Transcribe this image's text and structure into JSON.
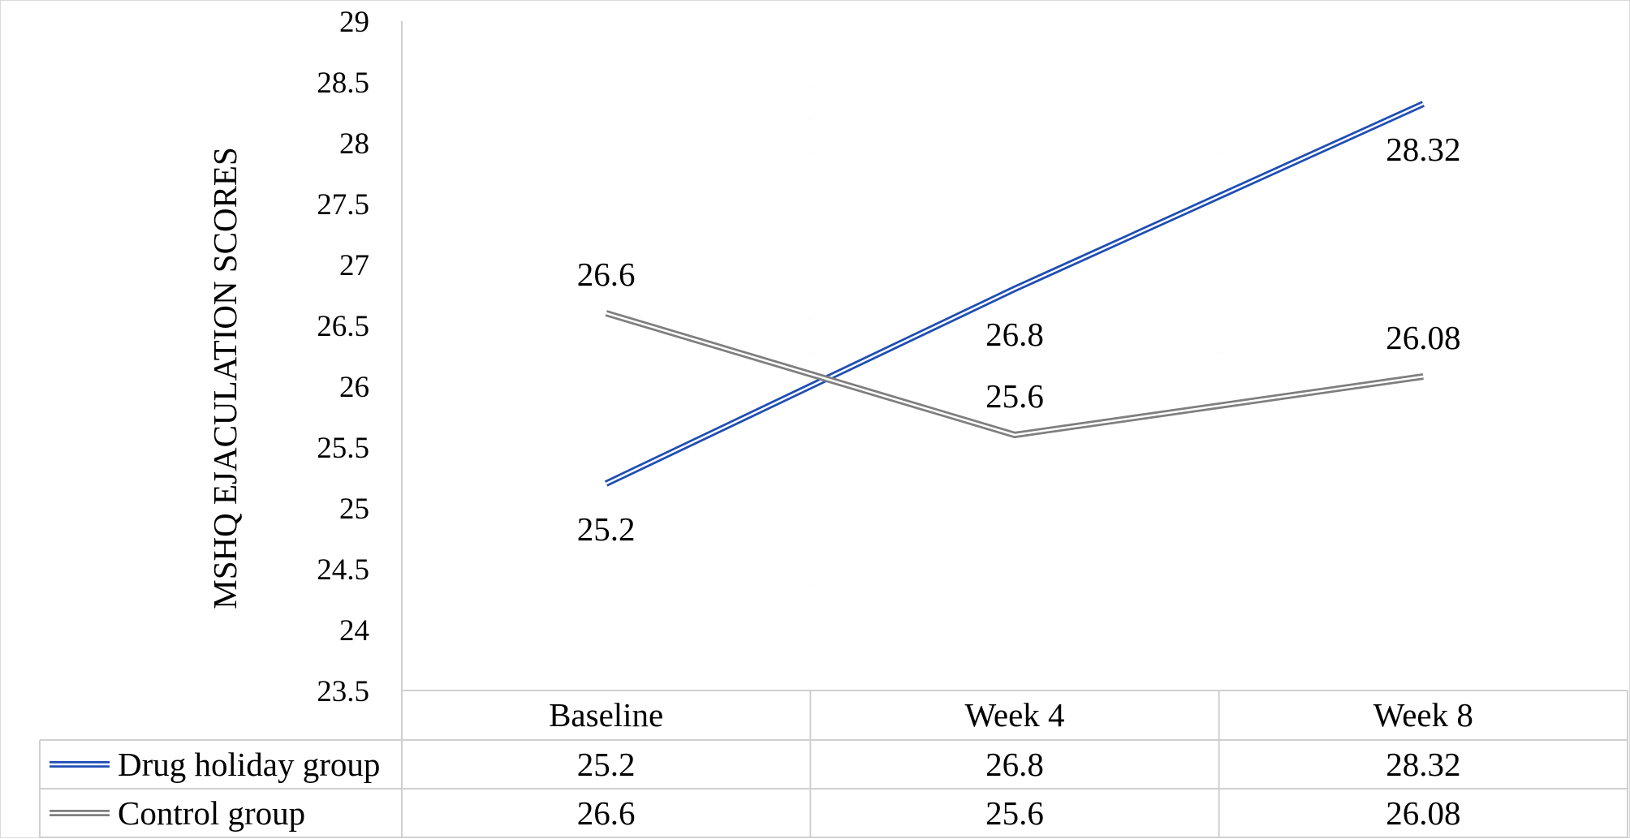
{
  "chart_data": {
    "type": "line",
    "title": "",
    "xlabel": "",
    "ylabel": "MSHQ EJACULATION SCORES",
    "ylim": [
      23.5,
      29
    ],
    "ytick_step": 0.5,
    "yticks": [
      "23.5",
      "24",
      "24.5",
      "25",
      "25.5",
      "26",
      "26.5",
      "27",
      "27.5",
      "28",
      "28.5",
      "29"
    ],
    "categories": [
      "Baseline",
      "Week 4",
      "Week 8"
    ],
    "grid": false,
    "legend": "data-table",
    "series": [
      {
        "name": "Drug holiday group",
        "values": [
          25.2,
          26.8,
          28.32
        ],
        "labels": [
          "25.2",
          "26.8",
          "28.32"
        ],
        "color": "#1f4eb4"
      },
      {
        "name": "Control group",
        "values": [
          26.6,
          25.6,
          26.08
        ],
        "labels": [
          "26.6",
          "25.6",
          "26.08"
        ],
        "color": "#7f7f7f"
      }
    ]
  }
}
